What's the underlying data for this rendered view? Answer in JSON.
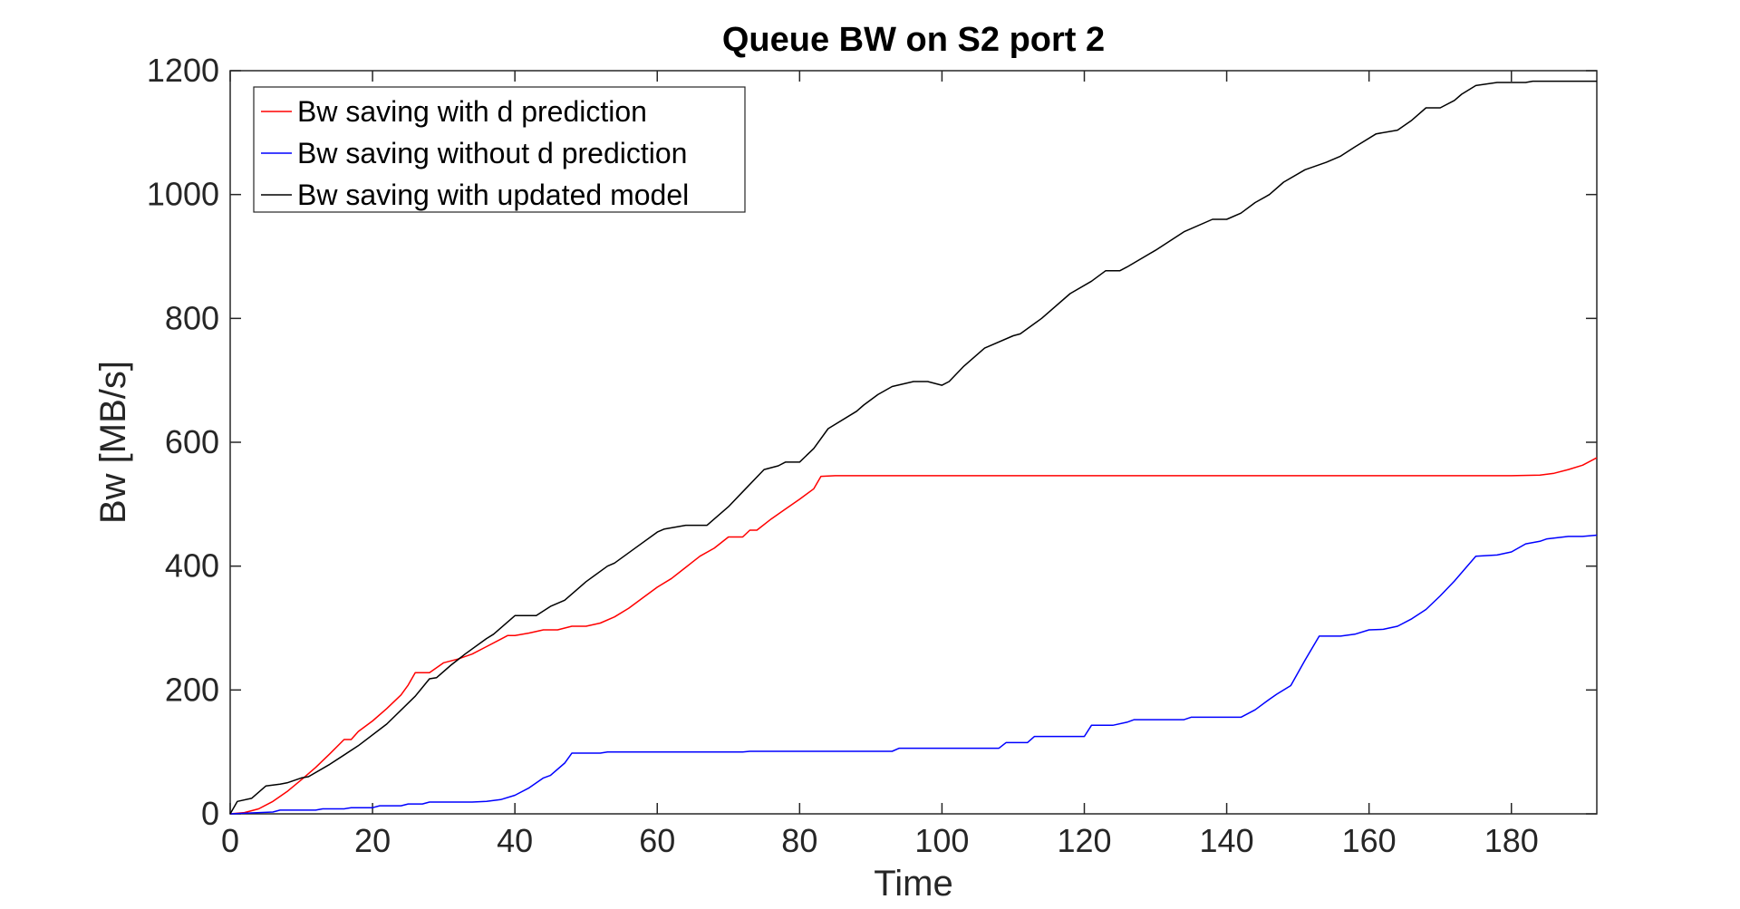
{
  "chart_data": {
    "type": "line",
    "title": "Queue BW on S2 port 2",
    "xlabel": "Time",
    "ylabel": "Bw [MB/s]",
    "xlim": [
      0,
      192
    ],
    "ylim": [
      0,
      1200
    ],
    "xticks": [
      0,
      20,
      40,
      60,
      80,
      100,
      120,
      140,
      160,
      180
    ],
    "yticks": [
      0,
      200,
      400,
      600,
      800,
      1000,
      1200
    ],
    "grid": false,
    "legend_position": "top-left",
    "series": [
      {
        "name": "Bw saving with d prediction",
        "color": "#ff0000",
        "x": [
          0,
          2,
          4,
          6,
          8,
          10,
          12,
          14,
          16,
          17,
          18,
          20,
          22,
          24,
          25,
          26,
          28,
          30,
          32,
          34,
          36,
          38,
          39,
          40,
          42,
          44,
          46,
          48,
          50,
          52,
          54,
          56,
          58,
          60,
          62,
          64,
          66,
          68,
          70,
          72,
          73,
          74,
          76,
          78,
          80,
          82,
          83,
          85,
          100,
          120,
          140,
          160,
          180,
          184,
          186,
          188,
          190,
          192
        ],
        "y": [
          0,
          2,
          8,
          20,
          36,
          55,
          75,
          97,
          120,
          120,
          133,
          150,
          170,
          192,
          208,
          228,
          228,
          244,
          250,
          258,
          270,
          282,
          288,
          288,
          292,
          297,
          297,
          303,
          303,
          308,
          318,
          332,
          349,
          366,
          380,
          398,
          416,
          429,
          447,
          447,
          458,
          458,
          476,
          492,
          508,
          525,
          545,
          546,
          546,
          546,
          546,
          546,
          546,
          547,
          550,
          556,
          563,
          575
        ]
      },
      {
        "name": "Bw saving without d prediction",
        "color": "#0000ff",
        "x": [
          0,
          6,
          7,
          12,
          13,
          16,
          17,
          20,
          21,
          24,
          25,
          27,
          28,
          32,
          34,
          36,
          38,
          40,
          42,
          44,
          45,
          47,
          48,
          52,
          53,
          60,
          70,
          72,
          73,
          80,
          85,
          93,
          94,
          100,
          105,
          108,
          109,
          112,
          113,
          117,
          120,
          121,
          124,
          126,
          127,
          130,
          134,
          135,
          140,
          142,
          144,
          146,
          147,
          149,
          151,
          153,
          156,
          158,
          160,
          162,
          164,
          166,
          168,
          170,
          172,
          175,
          178,
          180,
          182,
          184,
          185,
          188,
          190,
          192
        ],
        "y": [
          0,
          3,
          6,
          6,
          8,
          8,
          10,
          10,
          13,
          13,
          16,
          16,
          19,
          19,
          19,
          20,
          23,
          30,
          42,
          58,
          62,
          82,
          98,
          98,
          100,
          100,
          100,
          100,
          101,
          101,
          101,
          101,
          106,
          106,
          106,
          106,
          115,
          115,
          125,
          125,
          125,
          143,
          143,
          148,
          152,
          152,
          152,
          156,
          156,
          156,
          168,
          185,
          193,
          207,
          248,
          287,
          287,
          290,
          297,
          298,
          303,
          315,
          330,
          352,
          376,
          416,
          418,
          423,
          436,
          440,
          444,
          448,
          448,
          450
        ]
      },
      {
        "name": "Bw saving with updated model",
        "color": "#000000",
        "x": [
          0,
          1,
          3,
          5,
          7,
          8,
          10,
          11,
          14,
          18,
          22,
          26,
          28,
          29,
          31,
          33,
          36,
          37,
          40,
          43,
          45,
          47,
          50,
          53,
          54,
          57,
          60,
          61,
          64,
          67,
          68,
          70,
          72,
          75,
          77,
          78,
          80,
          82,
          84,
          88,
          89,
          91,
          93,
          96,
          98,
          100,
          101,
          103,
          106,
          110,
          111,
          114,
          118,
          121,
          123,
          125,
          126,
          130,
          134,
          138,
          140,
          142,
          144,
          146,
          148,
          151,
          154,
          156,
          158,
          161,
          164,
          166,
          168,
          170,
          172,
          173,
          175,
          178,
          180,
          182,
          183,
          186,
          192
        ],
        "y": [
          0,
          20,
          25,
          45,
          48,
          50,
          58,
          60,
          80,
          110,
          145,
          190,
          218,
          220,
          240,
          258,
          283,
          290,
          320,
          320,
          335,
          345,
          375,
          400,
          405,
          430,
          455,
          460,
          466,
          466,
          476,
          496,
          520,
          556,
          562,
          568,
          568,
          590,
          622,
          650,
          660,
          677,
          690,
          698,
          698,
          692,
          698,
          722,
          752,
          772,
          775,
          800,
          840,
          860,
          877,
          877,
          883,
          910,
          940,
          960,
          960,
          970,
          987,
          1000,
          1020,
          1040,
          1052,
          1062,
          1077,
          1098,
          1104,
          1120,
          1140,
          1140,
          1152,
          1162,
          1176,
          1181,
          1181,
          1181,
          1183,
          1183,
          1183
        ]
      }
    ]
  }
}
